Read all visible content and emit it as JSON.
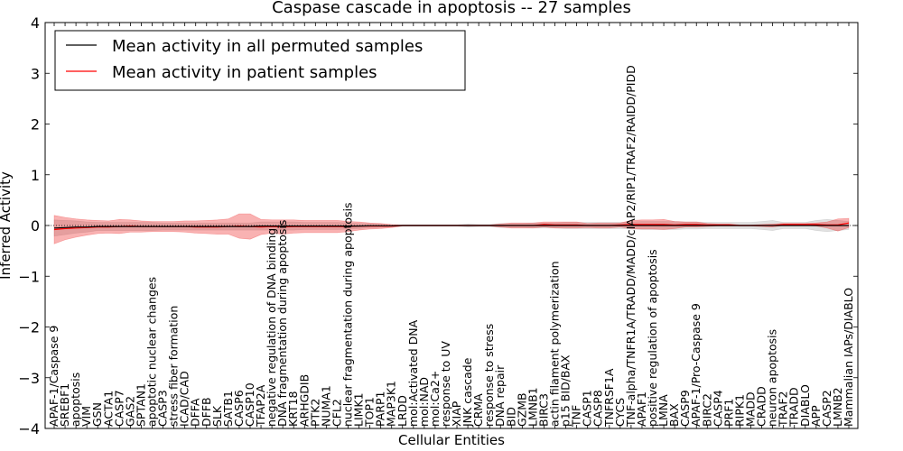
{
  "chart_data": {
    "type": "line",
    "title": "Caspase cascade in apoptosis -- 27 samples",
    "xlabel": "Cellular Entities",
    "ylabel": "Inferred Activity",
    "ylim": [
      -4,
      4
    ],
    "yticks": [
      "4",
      "3",
      "2",
      "1",
      "0",
      "−1",
      "−2",
      "−3",
      "−4"
    ],
    "legend": {
      "placement": "top-left",
      "entries": [
        {
          "name": "Mean activity in all permuted samples",
          "color": "#000000"
        },
        {
          "name": "Mean activity in patient samples",
          "color": "#ff0000"
        }
      ]
    },
    "categories": [
      "APAF-1/Caspase 9",
      "SREBF1",
      "apoptosis",
      "VIM",
      "GSN",
      "ACTA1",
      "CASP7",
      "GAS2",
      "SPTAN1",
      "apoptotic nuclear changes",
      "CASP3",
      "stress fiber formation",
      "ICAD/CAD",
      "DFFA",
      "DFFB",
      "SLK",
      "SATB1",
      "CASP6",
      "CASP10",
      "TFAP2A",
      "negative regulation of DNA binding",
      "DNA fragmentation during apoptosis",
      "KRT18",
      "ARHGDIB",
      "PTK2",
      "NUMA1",
      "CFL2",
      "nuclear fragmentation during apoptosis",
      "LIMK1",
      "TOP1",
      "PARP1",
      "MAP3K1",
      "LRDD",
      "mol:Activated DNA",
      "mol:NAD",
      "mol:Ca2+",
      "response to UV",
      "XIAP",
      "JNK cascade",
      "CRMA",
      "response to stress",
      "DNA repair",
      "BID",
      "GZMB",
      "LMNB1",
      "BIRC3",
      "actin filament polymerization",
      "p15 BID/BAX",
      "TNF",
      "CASP1",
      "CASP8",
      "TNFRSF1A",
      "CYCS",
      "TNF-alpha/TNFR1A/TRADD/MADD/cIAP2/RIP1/TRAF2/RAIDD/PIDD",
      "APAF1",
      "positive regulation of apoptosis",
      "LMNA",
      "BAX",
      "CASP9",
      "APAF-1/Pro-Caspase 9",
      "BIRC2",
      "CASP4",
      "PRF1",
      "RIPK1",
      "MADD",
      "CRADD",
      "neuron apoptosis",
      "TRAF2",
      "TRADD",
      "DIABLO",
      "APP",
      "CASP2",
      "LMNB2",
      "Mammalian IAPs/DIABLO"
    ],
    "series": [
      {
        "name": "Mean activity in all permuted samples",
        "values": [
          -0.05,
          -0.04,
          -0.03,
          -0.03,
          -0.02,
          -0.02,
          -0.02,
          -0.02,
          -0.02,
          -0.02,
          -0.02,
          -0.02,
          -0.02,
          -0.02,
          -0.02,
          -0.02,
          -0.02,
          -0.02,
          -0.02,
          -0.01,
          -0.01,
          -0.01,
          -0.01,
          -0.01,
          -0.01,
          -0.01,
          -0.01,
          -0.01,
          -0.01,
          -0.005,
          -0.005,
          -0.005,
          0,
          0,
          0,
          0,
          0,
          0,
          0,
          0,
          0,
          0,
          0,
          0,
          0,
          0,
          0,
          0,
          0,
          0,
          0,
          0,
          0,
          0,
          0,
          0,
          0,
          0,
          0,
          0,
          0,
          0,
          0,
          0,
          0,
          0,
          0,
          0,
          0,
          0,
          0,
          0,
          0,
          0
        ]
      },
      {
        "name": "Mean activity in patient samples",
        "values": [
          -0.08,
          -0.06,
          -0.05,
          -0.04,
          -0.03,
          -0.03,
          -0.02,
          -0.01,
          -0.02,
          -0.02,
          -0.02,
          -0.02,
          -0.02,
          -0.03,
          -0.03,
          -0.03,
          -0.02,
          -0.01,
          -0.02,
          -0.03,
          -0.02,
          -0.03,
          -0.02,
          -0.02,
          -0.02,
          -0.02,
          -0.02,
          -0.02,
          -0.01,
          -0.01,
          -0.01,
          -0.01,
          0,
          0,
          0,
          0,
          0,
          0,
          0,
          0,
          0,
          0,
          0,
          0,
          0,
          0.02,
          0.01,
          0.01,
          0.01,
          0,
          0,
          0,
          0.01,
          0.02,
          0.02,
          0.02,
          0.02,
          0.01,
          0.02,
          0.02,
          0.01,
          0.01,
          0.01,
          0,
          0,
          0,
          0,
          0.02,
          0.02,
          0.02,
          0.02,
          0.01,
          0.01,
          0.05
        ]
      },
      {
        "name": "Permuted spread (grey band)",
        "values": [
          0.16,
          0.14,
          0.12,
          0.1,
          0.08,
          0.08,
          0.08,
          0.08,
          0.08,
          0.08,
          0.07,
          0.07,
          0.07,
          0.07,
          0.07,
          0.07,
          0.07,
          0.07,
          0.07,
          0.08,
          0.08,
          0.08,
          0.08,
          0.07,
          0.07,
          0.07,
          0.07,
          0.06,
          0.05,
          0.04,
          0.03,
          0.02,
          0.01,
          0.01,
          0.01,
          0.01,
          0.01,
          0.01,
          0.03,
          0.02,
          0.02,
          0.04,
          0.04,
          0.04,
          0.05,
          0.05,
          0.05,
          0.06,
          0.06,
          0.06,
          0.06,
          0.06,
          0.06,
          0.07,
          0.08,
          0.08,
          0.08,
          0.08,
          0.07,
          0.07,
          0.06,
          0.06,
          0.06,
          0.06,
          0.06,
          0.08,
          0.1,
          0.06,
          0.06,
          0.06,
          0.1,
          0.12,
          0.1,
          0.08
        ]
      },
      {
        "name": "Patient spread (red band)",
        "values": [
          0.28,
          0.22,
          0.18,
          0.15,
          0.13,
          0.12,
          0.14,
          0.12,
          0.11,
          0.1,
          0.1,
          0.1,
          0.11,
          0.12,
          0.13,
          0.14,
          0.15,
          0.24,
          0.25,
          0.15,
          0.13,
          0.14,
          0.13,
          0.12,
          0.12,
          0.12,
          0.12,
          0.1,
          0.08,
          0.06,
          0.05,
          0.03,
          0.01,
          0.01,
          0.01,
          0.01,
          0.01,
          0.01,
          0.01,
          0.01,
          0.01,
          0.03,
          0.05,
          0.05,
          0.05,
          0.05,
          0.06,
          0.06,
          0.06,
          0.04,
          0.05,
          0.05,
          0.04,
          0.08,
          0.09,
          0.09,
          0.1,
          0.07,
          0.05,
          0.05,
          0.03,
          0.02,
          0.02,
          0.01,
          0.01,
          0.02,
          0.03,
          0.02,
          0.02,
          0.02,
          0.03,
          0.06,
          0.12,
          0.09
        ]
      }
    ]
  }
}
